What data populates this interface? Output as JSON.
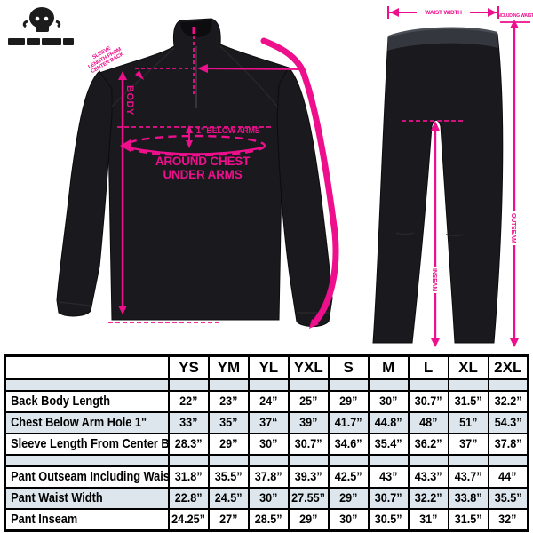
{
  "colors": {
    "accent": "#ED0F8C",
    "garment": "#1A1A1E",
    "table_alt_row": "#DCE6EC",
    "table_border": "#000000"
  },
  "icons": {
    "logo": "skull-logo"
  },
  "jacket": {
    "body_label": "BODY",
    "below_arms_label": "1” BELOW ARMS",
    "around_chest_line1": "AROUND CHEST",
    "around_chest_line2": "UNDER ARMS",
    "sleeve_note": [
      "SLEEVE",
      "LENGTH FROM",
      "CENTER BACK"
    ]
  },
  "pants": {
    "waist_label": "WAIST WIDTH",
    "outseam_note": "INCLUDING WAIST",
    "outseam_label": "OUTSEAM",
    "inseam_label": "INSEAM"
  },
  "size_chart": {
    "columns": [
      "YS",
      "YM",
      "YL",
      "YXL",
      "S",
      "M",
      "L",
      "XL",
      "2XL"
    ],
    "rows": [
      {
        "label": "Back Body Length",
        "values": [
          "22”",
          "23”",
          "24”",
          "25”",
          "29”",
          "30”",
          "30.7”",
          "31.5”",
          "32.2”"
        ]
      },
      {
        "label": "Chest Below Arm Hole 1\"",
        "values": [
          "33”",
          "35”",
          "37“",
          "39”",
          "41.7”",
          "44.8”",
          "48”",
          "51”",
          "54.3”"
        ]
      },
      {
        "label": "Sleeve Length From Center Back",
        "values": [
          "28.3”",
          "29”",
          "30”",
          "30.7”",
          "34.6”",
          "35.4”",
          "36.2”",
          "37”",
          "37.8”"
        ]
      },
      {
        "label": "Pant Outseam Including Waist",
        "values": [
          "31.8”",
          "35.5”",
          "37.8”",
          "39.3”",
          "42.5”",
          "43”",
          "43.3”",
          "43.7”",
          "44”"
        ]
      },
      {
        "label": "Pant Waist Width",
        "values": [
          "22.8”",
          "24.5”",
          "30”",
          "27.55”",
          "29”",
          "30.7”",
          "32.2”",
          "33.8”",
          "35.5”"
        ]
      },
      {
        "label": "Pant Inseam",
        "values": [
          "24.25”",
          "27”",
          "28.5”",
          "29”",
          "30”",
          "30.5”",
          "31”",
          "31.5”",
          "32”"
        ]
      }
    ],
    "row_groups": [
      [
        0,
        1,
        2
      ],
      [
        3,
        4,
        5
      ]
    ]
  }
}
